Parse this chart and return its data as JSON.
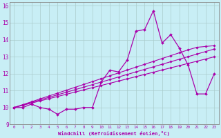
{
  "xlabel": "Windchill (Refroidissement éolien,°C)",
  "background_color": "#c8eef5",
  "grid_color": "#aacccc",
  "line_color": "#aa00aa",
  "xlim": [
    -0.5,
    23.5
  ],
  "ylim": [
    9,
    16.2
  ],
  "xticks": [
    0,
    1,
    2,
    3,
    4,
    5,
    6,
    7,
    8,
    9,
    10,
    11,
    12,
    13,
    14,
    15,
    16,
    17,
    18,
    19,
    20,
    21,
    22,
    23
  ],
  "yticks": [
    9,
    10,
    11,
    12,
    13,
    14,
    15,
    16
  ],
  "series_zigzag": [
    10.0,
    10.0,
    10.2,
    10.0,
    9.9,
    9.6,
    9.9,
    9.9,
    10.0,
    10.0,
    11.5,
    12.2,
    12.1,
    12.8,
    14.5,
    14.6,
    15.7,
    13.8,
    14.3,
    13.5,
    12.5,
    10.8,
    10.8,
    12.0
  ],
  "series_linear": [
    [
      10.0,
      10.13,
      10.26,
      10.39,
      10.52,
      10.65,
      10.78,
      10.91,
      11.04,
      11.17,
      11.3,
      11.43,
      11.56,
      11.69,
      11.82,
      11.95,
      12.08,
      12.21,
      12.34,
      12.47,
      12.6,
      12.73,
      12.86,
      12.99
    ],
    [
      10.0,
      10.15,
      10.3,
      10.45,
      10.6,
      10.75,
      10.9,
      11.05,
      11.2,
      11.35,
      11.5,
      11.65,
      11.8,
      11.95,
      12.1,
      12.25,
      12.4,
      12.55,
      12.7,
      12.85,
      13.0,
      13.15,
      13.3,
      13.45
    ],
    [
      10.0,
      10.17,
      10.34,
      10.51,
      10.68,
      10.85,
      11.02,
      11.19,
      11.36,
      11.53,
      11.7,
      11.87,
      12.04,
      12.21,
      12.38,
      12.55,
      12.72,
      12.89,
      13.06,
      13.23,
      13.4,
      13.55,
      13.6,
      13.65
    ]
  ]
}
